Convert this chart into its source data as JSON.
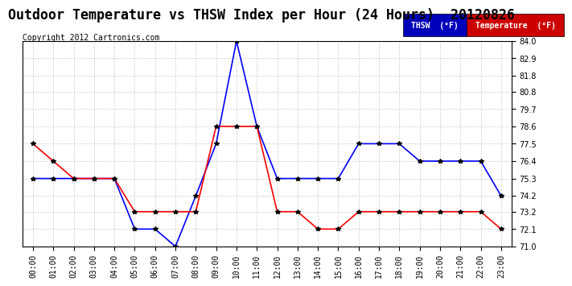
{
  "title": "Outdoor Temperature vs THSW Index per Hour (24 Hours)  20120826",
  "copyright": "Copyright 2012 Cartronics.com",
  "background_color": "#ffffff",
  "plot_background": "#ffffff",
  "grid_color": "#cccccc",
  "hours": [
    "00:00",
    "01:00",
    "02:00",
    "03:00",
    "04:00",
    "05:00",
    "06:00",
    "07:00",
    "08:00",
    "09:00",
    "10:00",
    "11:00",
    "12:00",
    "13:00",
    "14:00",
    "15:00",
    "16:00",
    "17:00",
    "18:00",
    "19:00",
    "20:00",
    "21:00",
    "22:00",
    "23:00"
  ],
  "thsw": [
    75.3,
    75.3,
    75.3,
    75.3,
    75.3,
    72.1,
    72.1,
    71.0,
    74.2,
    77.5,
    84.0,
    78.6,
    75.3,
    75.3,
    75.3,
    75.3,
    77.5,
    77.5,
    77.5,
    76.4,
    76.4,
    76.4,
    76.4,
    74.2
  ],
  "temperature": [
    77.5,
    76.4,
    75.3,
    75.3,
    75.3,
    73.2,
    73.2,
    73.2,
    73.2,
    78.6,
    78.6,
    78.6,
    73.2,
    73.2,
    72.1,
    72.1,
    73.2,
    73.2,
    73.2,
    73.2,
    73.2,
    73.2,
    73.2,
    72.1
  ],
  "thsw_color": "#0000ff",
  "temp_color": "#ff0000",
  "ylim": [
    71.0,
    84.0
  ],
  "yticks": [
    71.0,
    72.1,
    73.2,
    74.2,
    75.3,
    76.4,
    77.5,
    78.6,
    79.7,
    80.8,
    81.8,
    82.9,
    84.0
  ],
  "marker": "*",
  "marker_size": 4,
  "line_width": 1.2,
  "legend_thsw_bg": "#0000bb",
  "legend_temp_bg": "#cc0000",
  "legend_text_color": "#ffffff",
  "title_fontsize": 12,
  "copyright_fontsize": 7,
  "tick_fontsize": 7,
  "legend_fontsize": 7
}
